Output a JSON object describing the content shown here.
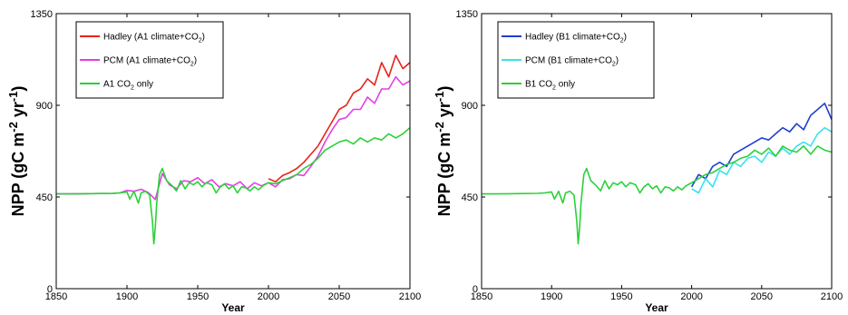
{
  "chart_data": [
    {
      "type": "line",
      "ylabel": "NPP (gC m-2 yr-1)",
      "ylabel_parts": {
        "base": "NPP (gC m",
        "exp1": "-2",
        "mid": " yr",
        "exp2": "-1",
        "end": ")"
      },
      "xlabel": "Year",
      "xlim": [
        1850,
        2100
      ],
      "ylim": [
        0,
        1350
      ],
      "xticks": [
        1850,
        1900,
        1950,
        2000,
        2050,
        2100
      ],
      "yticks": [
        0,
        450,
        900,
        1350
      ],
      "legend": "top-left",
      "series": [
        {
          "name": "Hadley (A1 climate+CO2)",
          "label_parts": {
            "pre": "Hadley (A1 climate+CO",
            "sub": "2",
            "post": ")"
          },
          "color": "#e8231b",
          "x": [
            2000,
            2005,
            2010,
            2015,
            2020,
            2025,
            2030,
            2035,
            2040,
            2045,
            2050,
            2055,
            2060,
            2065,
            2070,
            2075,
            2080,
            2085,
            2090,
            2095,
            2100
          ],
          "y": [
            540,
            525,
            555,
            570,
            590,
            620,
            660,
            700,
            760,
            820,
            880,
            900,
            960,
            980,
            1030,
            1000,
            1110,
            1040,
            1145,
            1080,
            1110
          ]
        },
        {
          "name": "PCM (A1 climate+CO2)",
          "label_parts": {
            "pre": "PCM (A1 climate+CO",
            "sub": "2",
            "post": ")"
          },
          "color": "#e33ee6",
          "x": [
            1850,
            1860,
            1870,
            1880,
            1890,
            1895,
            1900,
            1905,
            1910,
            1915,
            1920,
            1925,
            1930,
            1935,
            1940,
            1945,
            1950,
            1955,
            1960,
            1965,
            1970,
            1975,
            1980,
            1985,
            1990,
            1995,
            2000,
            2005,
            2010,
            2015,
            2020,
            2025,
            2030,
            2035,
            2040,
            2045,
            2050,
            2055,
            2060,
            2065,
            2070,
            2075,
            2080,
            2085,
            2090,
            2095,
            2100
          ],
          "y": [
            465,
            465,
            466,
            467,
            468,
            470,
            482,
            478,
            488,
            472,
            438,
            565,
            510,
            490,
            530,
            525,
            545,
            515,
            535,
            500,
            515,
            505,
            525,
            490,
            520,
            505,
            520,
            500,
            535,
            540,
            560,
            555,
            600,
            650,
            720,
            780,
            830,
            840,
            880,
            880,
            940,
            910,
            980,
            980,
            1040,
            1000,
            1020
          ]
        },
        {
          "name": "A1 CO2 only",
          "label_parts": {
            "pre": "A1 CO",
            "sub": "2",
            "post": " only"
          },
          "color": "#2bd13a",
          "x": [
            1850,
            1860,
            1870,
            1880,
            1890,
            1895,
            1900,
            1902,
            1905,
            1908,
            1910,
            1913,
            1916,
            1918,
            1919,
            1920,
            1921,
            1923,
            1925,
            1928,
            1932,
            1935,
            1938,
            1941,
            1944,
            1947,
            1950,
            1953,
            1956,
            1960,
            1963,
            1966,
            1969,
            1972,
            1975,
            1978,
            1981,
            1984,
            1987,
            1990,
            1993,
            1996,
            2000,
            2005,
            2010,
            2015,
            2020,
            2025,
            2030,
            2035,
            2040,
            2045,
            2050,
            2055,
            2060,
            2065,
            2070,
            2075,
            2080,
            2085,
            2090,
            2095,
            2100
          ],
          "y": [
            465,
            465,
            466,
            467,
            468,
            470,
            475,
            440,
            478,
            420,
            470,
            478,
            460,
            330,
            220,
            300,
            420,
            560,
            590,
            530,
            505,
            480,
            530,
            490,
            520,
            510,
            525,
            500,
            520,
            510,
            470,
            500,
            515,
            490,
            505,
            470,
            500,
            495,
            480,
            500,
            485,
            505,
            520,
            515,
            530,
            545,
            560,
            590,
            610,
            640,
            680,
            700,
            720,
            730,
            710,
            740,
            720,
            740,
            730,
            760,
            740,
            760,
            790
          ]
        }
      ]
    },
    {
      "type": "line",
      "ylabel": "NPP (gC m-2 yr-1)",
      "ylabel_parts": {
        "base": "NPP (gC m",
        "exp1": "-2",
        "mid": " yr",
        "exp2": "-1",
        "end": ")"
      },
      "xlabel": "Year",
      "xlim": [
        1850,
        2100
      ],
      "ylim": [
        0,
        1350
      ],
      "xticks": [
        1850,
        1900,
        1950,
        2000,
        2050,
        2100
      ],
      "yticks": [
        0,
        450,
        900,
        1350
      ],
      "legend": "top-left",
      "series": [
        {
          "name": "Hadley (B1 climate+CO2)",
          "label_parts": {
            "pre": "Hadley (B1 climate+CO",
            "sub": "2",
            "post": ")"
          },
          "color": "#1f3fd1",
          "x": [
            2000,
            2005,
            2010,
            2015,
            2020,
            2025,
            2030,
            2035,
            2040,
            2045,
            2050,
            2055,
            2060,
            2065,
            2070,
            2075,
            2080,
            2085,
            2090,
            2095,
            2100
          ],
          "y": [
            500,
            560,
            540,
            600,
            620,
            600,
            660,
            680,
            700,
            720,
            740,
            730,
            760,
            790,
            770,
            810,
            780,
            850,
            880,
            910,
            830
          ]
        },
        {
          "name": "PCM (B1 climate+CO2)",
          "label_parts": {
            "pre": "PCM (B1 climate+CO",
            "sub": "2",
            "post": ")"
          },
          "color": "#38e2ee",
          "x": [
            2000,
            2005,
            2010,
            2015,
            2020,
            2025,
            2030,
            2035,
            2040,
            2045,
            2050,
            2055,
            2060,
            2065,
            2070,
            2075,
            2080,
            2085,
            2090,
            2095,
            2100
          ],
          "y": [
            490,
            470,
            540,
            500,
            580,
            560,
            620,
            600,
            640,
            650,
            620,
            670,
            650,
            690,
            660,
            700,
            720,
            700,
            760,
            790,
            770
          ]
        },
        {
          "name": "B1 CO2 only",
          "label_parts": {
            "pre": "B1 CO",
            "sub": "2",
            "post": " only"
          },
          "color": "#2bd13a",
          "x": [
            1850,
            1860,
            1870,
            1880,
            1890,
            1895,
            1900,
            1902,
            1905,
            1908,
            1910,
            1913,
            1916,
            1918,
            1919,
            1920,
            1921,
            1923,
            1925,
            1928,
            1932,
            1935,
            1938,
            1941,
            1944,
            1947,
            1950,
            1953,
            1956,
            1960,
            1963,
            1966,
            1969,
            1972,
            1975,
            1978,
            1981,
            1984,
            1987,
            1990,
            1993,
            1996,
            2000,
            2005,
            2010,
            2015,
            2020,
            2025,
            2030,
            2035,
            2040,
            2045,
            2050,
            2055,
            2060,
            2065,
            2070,
            2075,
            2080,
            2085,
            2090,
            2095,
            2100
          ],
          "y": [
            465,
            465,
            466,
            467,
            468,
            470,
            475,
            440,
            478,
            420,
            470,
            478,
            460,
            330,
            220,
            300,
            420,
            560,
            590,
            530,
            505,
            480,
            530,
            490,
            520,
            510,
            525,
            500,
            520,
            510,
            470,
            500,
            515,
            490,
            505,
            470,
            500,
            495,
            480,
            500,
            485,
            505,
            520,
            540,
            560,
            570,
            590,
            610,
            620,
            640,
            650,
            680,
            660,
            690,
            650,
            700,
            680,
            670,
            700,
            660,
            700,
            680,
            670
          ]
        }
      ]
    }
  ]
}
